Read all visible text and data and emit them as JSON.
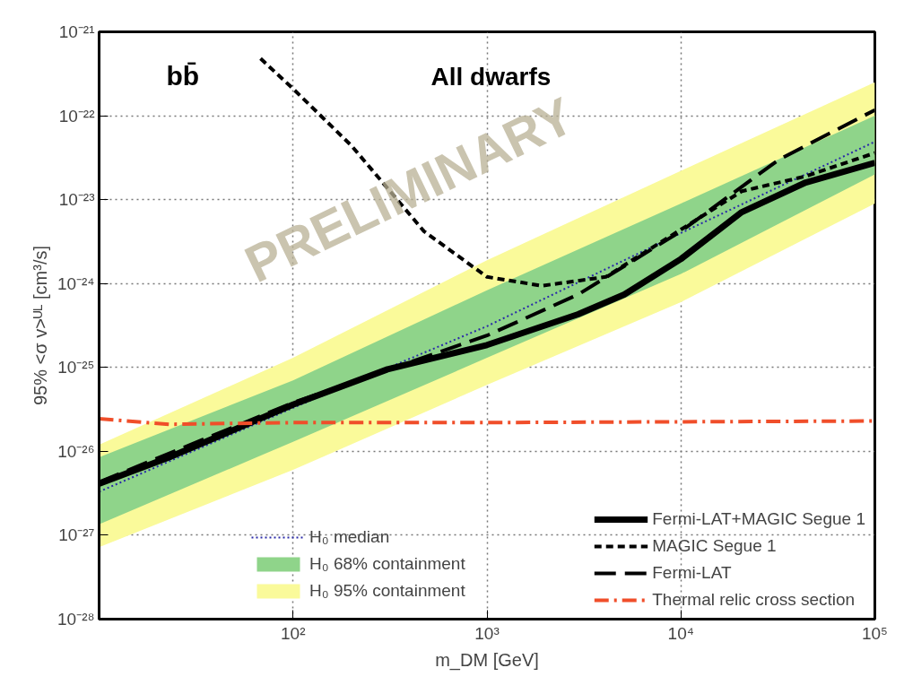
{
  "chart_data": {
    "type": "line",
    "xlabel": "m_DM [GeV]",
    "ylabel": "95% <σ v>ᵁᴸ [cm³/s]",
    "log": "xy",
    "grid": true,
    "legend": "bottom",
    "xlim": [
      10,
      100000
    ],
    "ylim": [
      1e-28,
      1e-21
    ],
    "xticks": [
      {
        "value": 10,
        "label": null
      },
      {
        "value": 100,
        "label": "10²"
      },
      {
        "value": 1000,
        "label": "10³"
      },
      {
        "value": 10000,
        "label": "10⁴"
      },
      {
        "value": 100000,
        "label": "10⁵"
      }
    ],
    "yticks": [
      {
        "value": 1e-28,
        "label": "10⁻²⁸"
      },
      {
        "value": 1e-27,
        "label": "10⁻²⁷"
      },
      {
        "value": 1e-26,
        "label": "10⁻²⁶"
      },
      {
        "value": 1e-25,
        "label": "10⁻²⁵"
      },
      {
        "value": 1e-24,
        "label": "10⁻²⁴"
      },
      {
        "value": 1e-23,
        "label": "10⁻²³"
      },
      {
        "value": 1e-22,
        "label": "10⁻²²"
      },
      {
        "value": 1e-21,
        "label": "10⁻²¹"
      }
    ],
    "annotations": [
      "bb̄",
      "All dwarfs",
      "PRELIMINARY"
    ],
    "series": [
      {
        "name": "H₀ 95% containment",
        "color": "#fafa9a",
        "x": [
          10,
          100,
          1000,
          10000,
          100000
        ],
        "values": [
          null,
          null,
          null,
          null,
          null
        ],
        "lower": [
          7.2e-28,
          6e-27,
          6.2e-26,
          6e-25,
          9e-24
        ],
        "upper": [
          1.2e-26,
          1.3e-25,
          1.9e-24,
          2.2e-23,
          2.5e-22
        ]
      },
      {
        "name": "H₀ 68% containment",
        "color": "#8fd48a",
        "x": [
          10,
          100,
          1000,
          10000,
          100000
        ],
        "values": [
          null,
          null,
          null,
          null,
          null
        ],
        "lower": [
          1.35e-27,
          1.3e-26,
          1.3e-25,
          1.3e-24,
          2e-23
        ],
        "upper": [
          8.5e-27,
          7e-26,
          8.3e-25,
          9e-24,
          1e-22
        ]
      },
      {
        "name": "H₀ median",
        "line_style": "dotted",
        "color": "#2a2aa8",
        "x": [
          10,
          100,
          1000,
          10000,
          100000
        ],
        "values": [
          3.3e-27,
          3.3e-26,
          3.1e-25,
          4e-24,
          4.9e-23
        ]
      },
      {
        "name": "Fermi-LAT+MAGIC Segue 1",
        "line_style": "solid",
        "color": "#000000",
        "x": [
          10,
          23,
          100,
          307,
          1000,
          2950,
          5100,
          10000,
          20600,
          44000,
          100000
        ],
        "values": [
          4.1e-27,
          8.5e-27,
          3.6e-26,
          9.5e-26,
          1.85e-25,
          4.3e-25,
          7.4e-25,
          1.96e-24,
          7.1e-24,
          1.6e-23,
          2.75e-23
        ]
      },
      {
        "name": "MAGIC Segue 1",
        "line_style": "dashed",
        "color": "#000000",
        "x": [
          68,
          100,
          200,
          473,
          1000,
          1920,
          4100,
          10000,
          20600,
          44000,
          100000
        ],
        "values": [
          4.8e-22,
          2.1e-22,
          4.4e-23,
          4.2e-24,
          1.2e-24,
          9.4e-25,
          1.2e-24,
          4.4e-24,
          1.26e-23,
          1.9e-23,
          3.6e-23
        ]
      },
      {
        "name": "Fermi-LAT",
        "line_style": "longdash",
        "color": "#000000",
        "x": [
          10,
          100,
          1000,
          2950,
          10000,
          32000,
          100000
        ],
        "values": [
          4.3e-27,
          3.8e-26,
          2.4e-25,
          7.4e-25,
          4.2e-24,
          3e-23,
          1.17e-22
        ]
      },
      {
        "name": "Thermal relic cross section",
        "line_style": "dashdot",
        "color": "#f04e2a",
        "x": [
          10,
          23,
          100,
          1000,
          10000,
          100000
        ],
        "values": [
          2.45e-26,
          2.1e-26,
          2.2e-26,
          2.2e-26,
          2.25e-26,
          2.3e-26
        ]
      }
    ]
  }
}
